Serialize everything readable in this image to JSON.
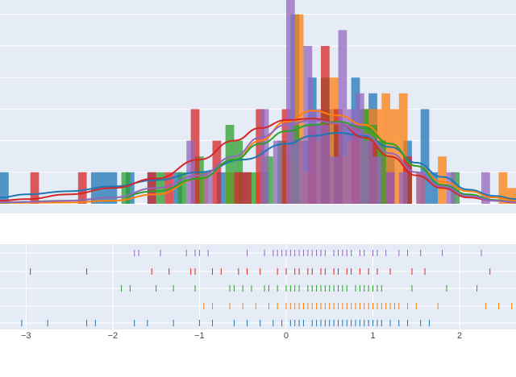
{
  "chart_data": {
    "type": "histogram",
    "title": "",
    "xlabel": "",
    "ylabel": "",
    "xlim": [
      -3.3,
      2.65
    ],
    "x_ticks": [
      -3,
      -2,
      -1,
      0,
      1,
      2
    ],
    "x_tick_labels": [
      "−3",
      "−2",
      "−1",
      "0",
      "1",
      "2"
    ],
    "density_ylim": [
      0,
      0.62
    ],
    "density_gridlines": [
      0.1,
      0.2,
      0.3,
      0.4,
      0.5,
      0.6
    ],
    "bar_opacity": 0.75,
    "grid": true,
    "legend": "none",
    "panel_background": "#e5ecf6",
    "series": [
      {
        "color": "#1f77b4",
        "bars": [
          [
            -3.3,
            -3.2,
            0.1
          ],
          [
            -2.25,
            -1.95,
            0.1
          ],
          [
            -1.85,
            -1.75,
            0.1
          ],
          [
            -1.6,
            -1.5,
            0.1
          ],
          [
            -1.3,
            -1.2,
            0.1
          ],
          [
            -0.8,
            -0.7,
            0.1
          ],
          [
            -0.55,
            -0.45,
            0.1
          ],
          [
            -0.3,
            -0.2,
            0.1
          ],
          [
            0.05,
            0.15,
            0.6
          ],
          [
            0.15,
            0.25,
            0.2
          ],
          [
            0.25,
            0.35,
            0.4
          ],
          [
            0.35,
            0.45,
            0.25
          ],
          [
            0.45,
            0.55,
            0.3
          ],
          [
            0.55,
            0.65,
            0.2
          ],
          [
            0.65,
            0.75,
            0.25
          ],
          [
            0.75,
            0.85,
            0.4
          ],
          [
            0.85,
            0.95,
            0.3
          ],
          [
            0.95,
            1.05,
            0.35
          ],
          [
            1.05,
            1.15,
            0.2
          ],
          [
            1.15,
            1.25,
            0.15
          ],
          [
            1.35,
            1.45,
            0.2
          ],
          [
            1.55,
            1.65,
            0.3
          ],
          [
            1.65,
            1.75,
            0.1
          ]
        ],
        "curve": [
          [
            -3.3,
            0.02
          ],
          [
            -3.0,
            0.03
          ],
          [
            -2.5,
            0.04
          ],
          [
            -2.0,
            0.055
          ],
          [
            -1.5,
            0.075
          ],
          [
            -1.0,
            0.1
          ],
          [
            -0.5,
            0.14
          ],
          [
            0.0,
            0.19
          ],
          [
            0.3,
            0.215
          ],
          [
            0.6,
            0.225
          ],
          [
            0.9,
            0.215
          ],
          [
            1.2,
            0.18
          ],
          [
            1.5,
            0.13
          ],
          [
            1.8,
            0.085
          ],
          [
            2.1,
            0.045
          ],
          [
            2.4,
            0.025
          ],
          [
            2.65,
            0.015
          ]
        ],
        "rug": [
          -3.05,
          -2.75,
          -2.3,
          -2.2,
          -1.75,
          -1.6,
          -1.3,
          -1.0,
          -0.85,
          -0.6,
          -0.45,
          -0.3,
          -0.15,
          -0.05,
          0.05,
          0.1,
          0.15,
          0.2,
          0.3,
          0.35,
          0.4,
          0.45,
          0.5,
          0.55,
          0.6,
          0.65,
          0.7,
          0.75,
          0.8,
          0.85,
          0.9,
          0.95,
          1.0,
          1.05,
          1.1,
          1.2,
          1.3,
          1.4,
          1.55,
          1.65
        ]
      },
      {
        "color": "#ff7f0e",
        "bars": [
          [
            -1.0,
            -0.9,
            0.1
          ],
          [
            -0.7,
            -0.6,
            0.1
          ],
          [
            -0.35,
            -0.25,
            0.1
          ],
          [
            0.0,
            0.1,
            0.15
          ],
          [
            0.1,
            0.2,
            0.6
          ],
          [
            0.2,
            0.3,
            0.1
          ],
          [
            0.3,
            0.4,
            0.2
          ],
          [
            0.4,
            0.5,
            0.3
          ],
          [
            0.5,
            0.6,
            0.4
          ],
          [
            0.6,
            0.7,
            0.15
          ],
          [
            0.7,
            0.8,
            0.2
          ],
          [
            0.8,
            0.9,
            0.2
          ],
          [
            0.9,
            1.0,
            0.3
          ],
          [
            1.0,
            1.1,
            0.3
          ],
          [
            1.1,
            1.2,
            0.35
          ],
          [
            1.2,
            1.3,
            0.3
          ],
          [
            1.3,
            1.4,
            0.35
          ],
          [
            1.5,
            1.6,
            0.1
          ],
          [
            1.75,
            1.85,
            0.15
          ],
          [
            2.45,
            2.55,
            0.1
          ],
          [
            2.55,
            2.65,
            0.05
          ]
        ],
        "curve": [
          [
            -3.3,
            0.003
          ],
          [
            -2.5,
            0.004
          ],
          [
            -2.0,
            0.01
          ],
          [
            -1.5,
            0.03
          ],
          [
            -1.0,
            0.08
          ],
          [
            -0.6,
            0.14
          ],
          [
            -0.3,
            0.2
          ],
          [
            0.0,
            0.26
          ],
          [
            0.3,
            0.295
          ],
          [
            0.6,
            0.28
          ],
          [
            0.9,
            0.25
          ],
          [
            1.2,
            0.19
          ],
          [
            1.5,
            0.12
          ],
          [
            1.8,
            0.07
          ],
          [
            2.1,
            0.04
          ],
          [
            2.4,
            0.02
          ],
          [
            2.65,
            0.01
          ]
        ],
        "rug": [
          -0.95,
          -0.85,
          -0.65,
          -0.5,
          -0.35,
          -0.2,
          -0.1,
          0.0,
          0.05,
          0.1,
          0.15,
          0.2,
          0.25,
          0.3,
          0.35,
          0.4,
          0.45,
          0.5,
          0.55,
          0.6,
          0.65,
          0.7,
          0.75,
          0.8,
          0.85,
          0.9,
          0.95,
          1.0,
          1.05,
          1.1,
          1.15,
          1.2,
          1.25,
          1.3,
          1.4,
          1.5,
          1.75,
          2.3,
          2.45,
          2.6
        ]
      },
      {
        "color": "#2ca02c",
        "bars": [
          [
            -1.9,
            -1.8,
            0.1
          ],
          [
            -1.5,
            -1.4,
            0.1
          ],
          [
            -1.25,
            -1.15,
            0.1
          ],
          [
            -1.05,
            -0.95,
            0.15
          ],
          [
            -0.7,
            -0.6,
            0.25
          ],
          [
            -0.6,
            -0.5,
            0.2
          ],
          [
            -0.45,
            -0.35,
            0.1
          ],
          [
            -0.25,
            -0.15,
            0.15
          ],
          [
            -0.1,
            0.0,
            0.2
          ],
          [
            0.05,
            0.15,
            0.25
          ],
          [
            0.4,
            0.5,
            0.4
          ],
          [
            0.55,
            0.65,
            0.25
          ],
          [
            0.85,
            0.95,
            0.3
          ],
          [
            0.95,
            1.05,
            0.25
          ],
          [
            1.05,
            1.15,
            0.2
          ],
          [
            1.35,
            1.45,
            0.1
          ],
          [
            1.9,
            2.0,
            0.1
          ]
        ],
        "curve": [
          [
            -3.3,
            0.004
          ],
          [
            -2.5,
            0.01
          ],
          [
            -2.0,
            0.02
          ],
          [
            -1.5,
            0.04
          ],
          [
            -1.0,
            0.08
          ],
          [
            -0.6,
            0.14
          ],
          [
            -0.3,
            0.19
          ],
          [
            0.0,
            0.23
          ],
          [
            0.3,
            0.25
          ],
          [
            0.6,
            0.26
          ],
          [
            0.9,
            0.24
          ],
          [
            1.2,
            0.19
          ],
          [
            1.5,
            0.12
          ],
          [
            1.8,
            0.06
          ],
          [
            2.1,
            0.03
          ],
          [
            2.4,
            0.012
          ],
          [
            2.65,
            0.005
          ]
        ],
        "rug": [
          -1.9,
          -1.8,
          -1.5,
          -1.3,
          -1.05,
          -0.65,
          -0.6,
          -0.5,
          -0.4,
          -0.25,
          -0.2,
          -0.1,
          0.0,
          0.05,
          0.1,
          0.15,
          0.25,
          0.3,
          0.35,
          0.4,
          0.45,
          0.5,
          0.55,
          0.6,
          0.65,
          0.7,
          0.8,
          0.85,
          0.9,
          0.95,
          1.0,
          1.05,
          1.1,
          1.45,
          1.85,
          2.2
        ]
      },
      {
        "color": "#d62728",
        "bars": [
          [
            -2.95,
            -2.85,
            0.1
          ],
          [
            -2.4,
            -2.3,
            0.1
          ],
          [
            -1.6,
            -1.5,
            0.1
          ],
          [
            -1.4,
            -1.3,
            0.1
          ],
          [
            -1.1,
            -1.0,
            0.3
          ],
          [
            -0.85,
            -0.75,
            0.2
          ],
          [
            -0.6,
            -0.5,
            0.1
          ],
          [
            -0.5,
            -0.4,
            0.1
          ],
          [
            -0.35,
            -0.25,
            0.3
          ],
          [
            -0.05,
            0.05,
            0.3
          ],
          [
            0.25,
            0.35,
            0.25
          ],
          [
            0.4,
            0.5,
            0.5
          ],
          [
            0.55,
            0.65,
            0.3
          ],
          [
            0.75,
            0.85,
            0.25
          ],
          [
            0.95,
            1.05,
            0.2
          ],
          [
            1.15,
            1.25,
            0.1
          ],
          [
            1.35,
            1.45,
            0.15
          ]
        ],
        "curve": [
          [
            -3.3,
            0.01
          ],
          [
            -3.0,
            0.015
          ],
          [
            -2.5,
            0.03
          ],
          [
            -2.0,
            0.05
          ],
          [
            -1.5,
            0.08
          ],
          [
            -1.0,
            0.14
          ],
          [
            -0.6,
            0.2
          ],
          [
            -0.3,
            0.24
          ],
          [
            0.0,
            0.265
          ],
          [
            0.3,
            0.27
          ],
          [
            0.6,
            0.255
          ],
          [
            0.9,
            0.21
          ],
          [
            1.2,
            0.15
          ],
          [
            1.5,
            0.09
          ],
          [
            1.8,
            0.05
          ],
          [
            2.1,
            0.02
          ],
          [
            2.4,
            0.01
          ],
          [
            2.65,
            0.004
          ]
        ],
        "rug": [
          -2.95,
          -2.3,
          -1.55,
          -1.35,
          -1.1,
          -1.05,
          -0.85,
          -0.75,
          -0.55,
          -0.45,
          -0.3,
          -0.1,
          0.0,
          0.1,
          0.15,
          0.25,
          0.3,
          0.4,
          0.45,
          0.55,
          0.6,
          0.7,
          0.75,
          0.85,
          0.95,
          1.05,
          1.2,
          1.45,
          1.6,
          2.35
        ]
      },
      {
        "color": "#9467bd",
        "bars": [
          [
            -1.15,
            -1.05,
            0.2
          ],
          [
            -0.95,
            -0.85,
            0.1
          ],
          [
            -0.3,
            -0.2,
            0.3
          ],
          [
            -0.15,
            -0.05,
            0.2
          ],
          [
            0.0,
            0.1,
            0.65
          ],
          [
            0.1,
            0.2,
            0.2
          ],
          [
            0.2,
            0.3,
            0.5
          ],
          [
            0.3,
            0.4,
            0.3
          ],
          [
            0.4,
            0.5,
            0.25
          ],
          [
            0.5,
            0.6,
            0.15
          ],
          [
            0.6,
            0.7,
            0.55
          ],
          [
            0.7,
            0.8,
            0.3
          ],
          [
            0.8,
            0.9,
            0.35
          ],
          [
            0.9,
            1.0,
            0.2
          ],
          [
            1.0,
            1.1,
            0.15
          ],
          [
            1.15,
            1.25,
            0.1
          ],
          [
            1.3,
            1.4,
            0.1
          ],
          [
            1.5,
            1.6,
            0.1
          ],
          [
            1.85,
            1.95,
            0.1
          ],
          [
            2.25,
            2.35,
            0.1
          ]
        ],
        "curve": [
          [
            -3.3,
            0.005
          ],
          [
            -3.0,
            0.006
          ],
          [
            -2.5,
            0.01
          ],
          [
            -2.0,
            0.02
          ],
          [
            -1.5,
            0.05
          ],
          [
            -1.0,
            0.09
          ],
          [
            -0.6,
            0.15
          ],
          [
            -0.3,
            0.21
          ],
          [
            0.0,
            0.25
          ],
          [
            0.3,
            0.265
          ],
          [
            0.6,
            0.255
          ],
          [
            0.9,
            0.22
          ],
          [
            1.2,
            0.16
          ],
          [
            1.5,
            0.1
          ],
          [
            1.8,
            0.055
          ],
          [
            2.1,
            0.025
          ],
          [
            2.4,
            0.01
          ],
          [
            2.65,
            0.005
          ]
        ],
        "rug": [
          -1.75,
          -1.7,
          -1.45,
          -1.15,
          -1.05,
          -1.0,
          -0.9,
          -0.45,
          -0.25,
          -0.15,
          -0.1,
          -0.05,
          0.0,
          0.05,
          0.1,
          0.15,
          0.2,
          0.25,
          0.3,
          0.35,
          0.4,
          0.45,
          0.55,
          0.6,
          0.65,
          0.7,
          0.75,
          0.85,
          0.9,
          1.0,
          1.05,
          1.15,
          1.3,
          1.4,
          1.55,
          1.8,
          2.25
        ]
      }
    ]
  }
}
